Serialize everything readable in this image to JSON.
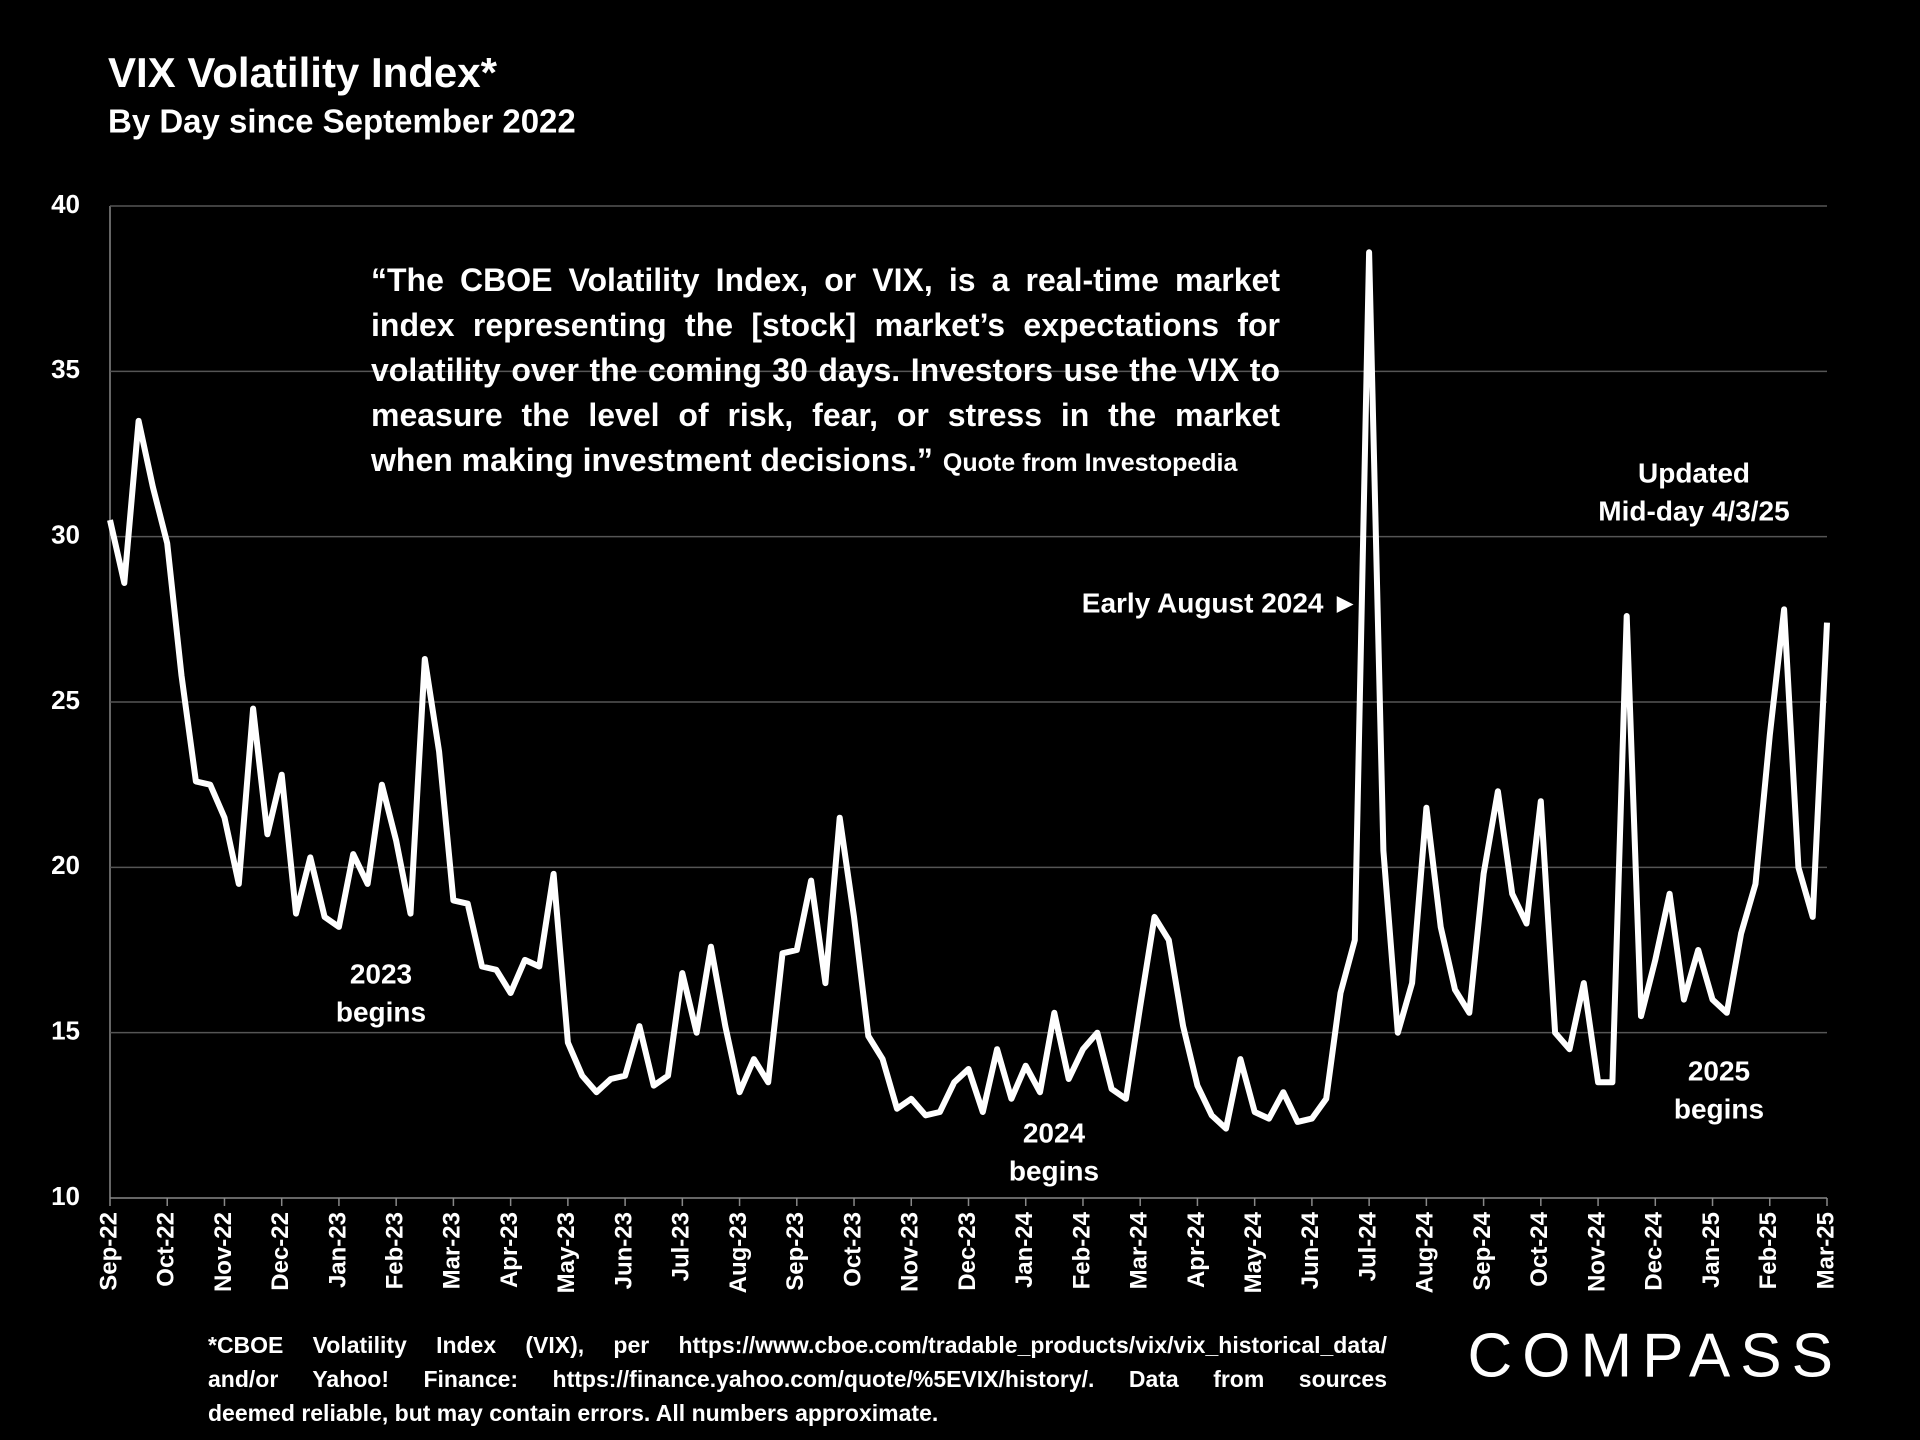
{
  "chart_data": {
    "type": "line",
    "title": "VIX Volatility Index*",
    "subtitle": "By Day since September 2022",
    "categories": [
      "Sep-22",
      null,
      null,
      null,
      "Oct-22",
      null,
      null,
      null,
      "Nov-22",
      null,
      null,
      null,
      "Dec-22",
      null,
      null,
      null,
      "Jan-23",
      null,
      null,
      null,
      "Feb-23",
      null,
      null,
      null,
      "Mar-23",
      null,
      null,
      null,
      "Apr-23",
      null,
      null,
      null,
      "May-23",
      null,
      null,
      null,
      "Jun-23",
      null,
      null,
      null,
      "Jul-23",
      null,
      null,
      null,
      "Aug-23",
      null,
      null,
      null,
      "Sep-23",
      null,
      null,
      null,
      "Oct-23",
      null,
      null,
      null,
      "Nov-23",
      null,
      null,
      null,
      "Dec-23",
      null,
      null,
      null,
      "Jan-24",
      null,
      null,
      null,
      "Feb-24",
      null,
      null,
      null,
      "Mar-24",
      null,
      null,
      null,
      "Apr-24",
      null,
      null,
      null,
      "May-24",
      null,
      null,
      null,
      "Jun-24",
      null,
      null,
      null,
      "Jul-24",
      null,
      null,
      null,
      "Aug-24",
      null,
      null,
      null,
      "Sep-24",
      null,
      null,
      null,
      "Oct-24",
      null,
      null,
      null,
      "Nov-24",
      null,
      null,
      null,
      "Dec-24",
      null,
      null,
      null,
      "Jan-25",
      null,
      null,
      null,
      "Feb-25",
      null,
      null,
      null,
      "Mar-25"
    ],
    "series": [
      {
        "name": "VIX",
        "color": "#ffffff",
        "values": [
          30.5,
          28.6,
          33.5,
          31.5,
          29.8,
          25.8,
          22.6,
          22.5,
          21.5,
          19.5,
          24.8,
          21,
          22.8,
          18.6,
          20.3,
          18.5,
          18.2,
          20.4,
          19.5,
          22.5,
          20.8,
          18.6,
          26.3,
          23.5,
          19,
          18.9,
          17,
          16.9,
          16.2,
          17.2,
          17,
          19.8,
          14.7,
          13.7,
          13.2,
          13.6,
          13.7,
          15.2,
          13.4,
          13.7,
          16.8,
          15,
          17.6,
          15.2,
          13.2,
          14.2,
          13.5,
          17.4,
          17.5,
          19.6,
          16.5,
          21.5,
          18.5,
          14.9,
          14.2,
          12.7,
          13,
          12.5,
          12.6,
          13.5,
          13.9,
          12.6,
          14.5,
          13,
          14,
          13.2,
          15.6,
          13.6,
          14.5,
          15,
          13.3,
          13,
          15.8,
          18.5,
          17.8,
          15.2,
          13.4,
          12.5,
          12.1,
          14.2,
          12.6,
          12.4,
          13.2,
          12.3,
          12.4,
          13,
          16.2,
          17.8,
          38.6,
          20.5,
          15,
          16.5,
          21.8,
          18.2,
          16.3,
          15.6,
          19.8,
          22.3,
          19.2,
          18.3,
          22,
          15,
          14.5,
          16.5,
          13.5,
          13.5,
          27.6,
          15.5,
          17.2,
          19.2,
          16,
          17.5,
          16,
          15.6,
          18,
          19.5,
          24,
          27.8,
          20,
          18.5,
          27.4
        ]
      }
    ],
    "ylim": [
      10,
      40
    ],
    "yticks": [
      10,
      15,
      20,
      25,
      30,
      35,
      40
    ],
    "grid": true,
    "quote_lines": [
      "“The CBOE Volatility Index, or VIX, is a real-time market",
      "index representing the [stock] market’s expectations for",
      "volatility over the coming 30 days. Investors use the VIX to",
      "measure the level of risk, fear, or stress in the market",
      "when making investment decisions.”"
    ],
    "quote_source": "Quote from Investopedia",
    "annotations": [
      {
        "lines": [
          "2023",
          "begins"
        ]
      },
      {
        "lines": [
          "2024",
          "begins"
        ]
      },
      {
        "lines": [
          "2025",
          "begins"
        ]
      },
      {
        "lines": [
          "Updated",
          "Mid-day 4/3/25"
        ]
      },
      {
        "lines": [
          "Early August 2024 ►"
        ]
      }
    ],
    "footnote_lines": [
      "*CBOE Volatility Index (VIX), per https://www.cboe.com/tradable_products/vix/vix_historical_data/",
      "and/or Yahoo! Finance: https://finance.yahoo.com/quote/%5EVIX/history/. Data from sources",
      "deemed reliable, but may contain errors. All numbers approximate."
    ],
    "logo": "COMPASS"
  }
}
